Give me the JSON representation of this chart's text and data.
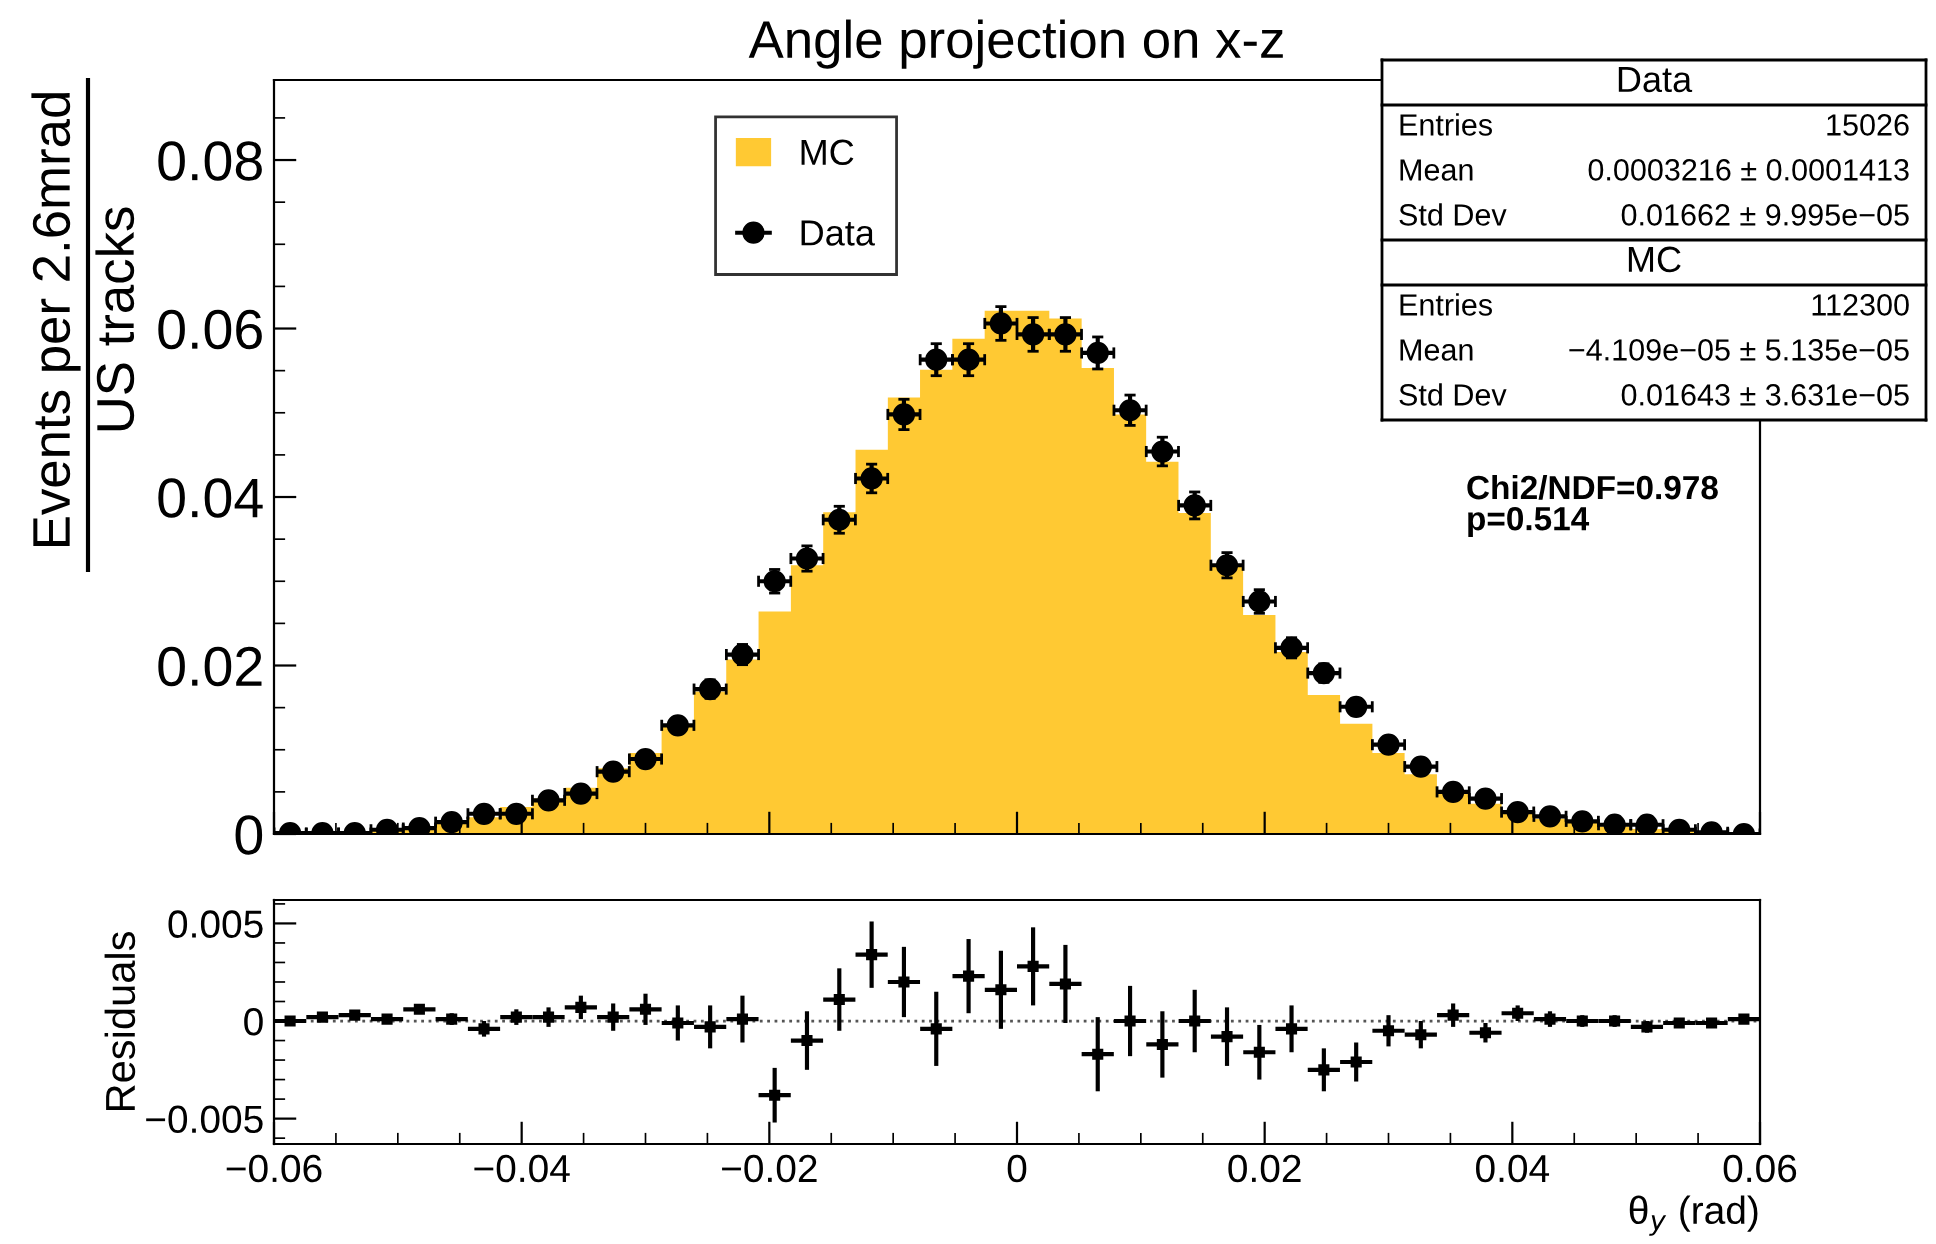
{
  "chart_data": [
    {
      "type": "histogram",
      "title": "Angle projection on x-z",
      "ylabel": "Events per 2.6mrad\nUS tracks",
      "bins": [
        -0.06,
        -0.05739,
        -0.05478,
        -0.05217,
        -0.04957,
        -0.04696,
        -0.04435,
        -0.04174,
        -0.03913,
        -0.03652,
        -0.03391,
        -0.0313,
        -0.0287,
        -0.02609,
        -0.02348,
        -0.02087,
        -0.01826,
        -0.01565,
        -0.01304,
        -0.01043,
        -0.00783,
        -0.00522,
        -0.00261,
        0,
        0.00261,
        0.00522,
        0.00783,
        0.01043,
        0.01304,
        0.01565,
        0.01826,
        0.02087,
        0.02348,
        0.02609,
        0.0287,
        0.0313,
        0.03391,
        0.03652,
        0.03913,
        0.04174,
        0.04435,
        0.04696,
        0.04957,
        0.05217,
        0.05478,
        0.05739,
        0.06
      ],
      "series": [
        {
          "name": "MC",
          "type": "histogram",
          "color": "#ffc933",
          "values": [
            0.0001,
            0.0001,
            0.0002,
            0.0006,
            0.0008,
            0.0013,
            0.002,
            0.0032,
            0.0042,
            0.0055,
            0.0078,
            0.0096,
            0.0129,
            0.0169,
            0.0207,
            0.0264,
            0.0319,
            0.0382,
            0.0456,
            0.0518,
            0.0551,
            0.0588,
            0.0621,
            0.0621,
            0.0612,
            0.0553,
            0.0498,
            0.0442,
            0.0381,
            0.0317,
            0.026,
            0.0216,
            0.0165,
            0.0131,
            0.0096,
            0.0071,
            0.0052,
            0.0036,
            0.0026,
            0.0018,
            0.0013,
            0.0009,
            0.0006,
            0.0004,
            0.0002,
            0.0001
          ]
        },
        {
          "name": "Data",
          "type": "scatter",
          "color": "#000000",
          "marker": "circle",
          "x": [
            -0.0587,
            -0.05609,
            -0.05348,
            -0.05087,
            -0.04826,
            -0.04565,
            -0.04304,
            -0.04043,
            -0.03783,
            -0.03522,
            -0.03261,
            -0.03,
            -0.02739,
            -0.02478,
            -0.02217,
            -0.01957,
            -0.01696,
            -0.01435,
            -0.01174,
            -0.00913,
            -0.00652,
            -0.00391,
            -0.0013,
            0.0013,
            0.00391,
            0.00652,
            0.00913,
            0.01174,
            0.01435,
            0.01696,
            0.01957,
            0.02217,
            0.02478,
            0.02739,
            0.03,
            0.03261,
            0.03522,
            0.03783,
            0.04043,
            0.04304,
            0.04565,
            0.04826,
            0.05087,
            0.05348,
            0.05609,
            0.0587
          ],
          "values": [
            0.0001,
            0.0001,
            0.0001,
            0.0005,
            0.0007,
            0.0014,
            0.0024,
            0.0024,
            0.004,
            0.0048,
            0.0074,
            0.0089,
            0.0129,
            0.0172,
            0.0213,
            0.03,
            0.0327,
            0.0373,
            0.0422,
            0.0498,
            0.0563,
            0.0563,
            0.0606,
            0.0593,
            0.0593,
            0.0571,
            0.0503,
            0.0454,
            0.039,
            0.0319,
            0.0276,
            0.0221,
            0.0191,
            0.0151,
            0.0106,
            0.008,
            0.005,
            0.0042,
            0.0026,
            0.0021,
            0.0015,
            0.0011,
            0.0011,
            0.0005,
            0.0002,
            0.0
          ],
          "errors": [
            0.0001,
            0.0001,
            0.0001,
            0.0002,
            0.0002,
            0.0003,
            0.0004,
            0.0004,
            0.0005,
            0.0006,
            0.0007,
            0.0008,
            0.0009,
            0.0011,
            0.0012,
            0.0014,
            0.0015,
            0.0016,
            0.0017,
            0.0018,
            0.0019,
            0.0019,
            0.002,
            0.002,
            0.002,
            0.0019,
            0.0018,
            0.0017,
            0.0016,
            0.0015,
            0.0014,
            0.0012,
            0.0011,
            0.001,
            0.0008,
            0.0007,
            0.0006,
            0.0005,
            0.0004,
            0.0004,
            0.0003,
            0.0003,
            0.0003,
            0.0002,
            0.0001,
            0.0001
          ],
          "xerrors": [
            0.0013,
            0.0013,
            0.0013,
            0.0013,
            0.0013,
            0.0013,
            0.0013,
            0.0013,
            0.0013,
            0.0013,
            0.0013,
            0.0013,
            0.0013,
            0.0013,
            0.0013,
            0.0013,
            0.0013,
            0.0013,
            0.0013,
            0.0013,
            0.0013,
            0.0013,
            0.0013,
            0.0013,
            0.0013,
            0.0013,
            0.0013,
            0.0013,
            0.0013,
            0.0013,
            0.0013,
            0.0013,
            0.0013,
            0.0013,
            0.0013,
            0.0013,
            0.0013,
            0.0013,
            0.0013,
            0.0013,
            0.0013,
            0.0013,
            0.0013,
            0.0013,
            0.0013,
            0.0013
          ]
        }
      ],
      "xlim": [
        -0.06,
        0.06
      ],
      "xticks": [
        -0.06,
        -0.04,
        -0.02,
        0,
        0.02,
        0.04,
        0.06
      ],
      "ylim": [
        0,
        0.0895
      ],
      "yticks": [
        0,
        0.02,
        0.04,
        0.06,
        0.08
      ],
      "tick_labels": "y",
      "legend": "top",
      "grid": false,
      "annotations": [
        "Data",
        "Entries",
        "15026",
        "Mean",
        "0.0003216 ± 0.0001413",
        "Std Dev",
        "0.01662 ± 9.995e−05",
        "MC",
        "Entries",
        "112300",
        "Mean",
        "−4.109e−05 ± 5.135e−05",
        "Std Dev",
        "0.01643 ± 3.631e−05",
        "Chi2/NDF=0.978\np=0.514"
      ]
    },
    {
      "type": "scatter",
      "ylabel": "Residuals",
      "xlabel": "θ$_{y}$ (rad)",
      "marker": "square",
      "color": "#000000",
      "x": [
        -0.0587,
        -0.05609,
        -0.05348,
        -0.05087,
        -0.04826,
        -0.04565,
        -0.04304,
        -0.04043,
        -0.03783,
        -0.03522,
        -0.03261,
        -0.03,
        -0.02739,
        -0.02478,
        -0.02217,
        -0.01957,
        -0.01696,
        -0.01435,
        -0.01174,
        -0.00913,
        -0.00652,
        -0.00391,
        -0.0013,
        0.0013,
        0.00391,
        0.00652,
        0.00913,
        0.01174,
        0.01435,
        0.01696,
        0.01957,
        0.02217,
        0.02478,
        0.02739,
        0.03,
        0.03261,
        0.03522,
        0.03783,
        0.04043,
        0.04304,
        0.04565,
        0.04826,
        0.05087,
        0.05348,
        0.05609,
        0.0587
      ],
      "values": [
        0.0,
        0.0002,
        0.0003,
        0.0001,
        0.0006,
        0.0001,
        -0.0004,
        0.0002,
        0.0002,
        0.0007,
        0.0002,
        0.0006,
        -0.0001,
        -0.0003,
        0.0001,
        -0.0038,
        -0.001,
        0.0011,
        0.0034,
        0.002,
        -0.0004,
        0.0023,
        0.0016,
        0.0028,
        0.0019,
        -0.0017,
        0.0,
        -0.0012,
        0.0,
        -0.0008,
        -0.0016,
        -0.0004,
        -0.0025,
        -0.0021,
        -0.0005,
        -0.0007,
        0.0003,
        -0.0006,
        0.0004,
        0.0001,
        0.0,
        0.0,
        -0.0003,
        -0.0001,
        -0.0001,
        0.0001
      ],
      "errors": [
        0.0001,
        0.0001,
        0.0001,
        0.0002,
        0.0002,
        0.0003,
        0.0004,
        0.0004,
        0.0005,
        0.0006,
        0.0007,
        0.0008,
        0.0009,
        0.0011,
        0.0012,
        0.0014,
        0.0015,
        0.0016,
        0.0017,
        0.0018,
        0.0019,
        0.0019,
        0.002,
        0.002,
        0.002,
        0.0019,
        0.0018,
        0.0017,
        0.0016,
        0.0015,
        0.0014,
        0.0012,
        0.0011,
        0.001,
        0.0008,
        0.0007,
        0.0006,
        0.0005,
        0.0004,
        0.0004,
        0.0003,
        0.0003,
        0.0003,
        0.0002,
        0.0001,
        0.0001
      ],
      "xerrors": [
        0.0013,
        0.0013,
        0.0013,
        0.0013,
        0.0013,
        0.0013,
        0.0013,
        0.0013,
        0.0013,
        0.0013,
        0.0013,
        0.0013,
        0.0013,
        0.0013,
        0.0013,
        0.0013,
        0.0013,
        0.0013,
        0.0013,
        0.0013,
        0.0013,
        0.0013,
        0.0013,
        0.0013,
        0.0013,
        0.0013,
        0.0013,
        0.0013,
        0.0013,
        0.0013,
        0.0013,
        0.0013,
        0.0013,
        0.0013,
        0.0013,
        0.0013,
        0.0013,
        0.0013,
        0.0013,
        0.0013,
        0.0013,
        0.0013,
        0.0013,
        0.0013,
        0.0013,
        0.0013
      ],
      "xlim": [
        -0.06,
        0.06
      ],
      "xticks": [
        {
          "value": -0.06,
          "label": "−0.06"
        },
        {
          "value": -0.04,
          "label": "−0.04"
        },
        {
          "value": -0.02,
          "label": "−0.02"
        },
        0,
        0.02,
        0.04,
        0.06
      ],
      "ylim": [
        -0.0063,
        0.0062
      ],
      "yticks": [
        {
          "value": -0.005,
          "label": "−0.005"
        },
        0,
        0.005
      ],
      "grid": false,
      "ref_lines": [
        {
          "axis": "y",
          "value": 0,
          "color": "#555555",
          "line_style": "dotted"
        }
      ]
    }
  ]
}
